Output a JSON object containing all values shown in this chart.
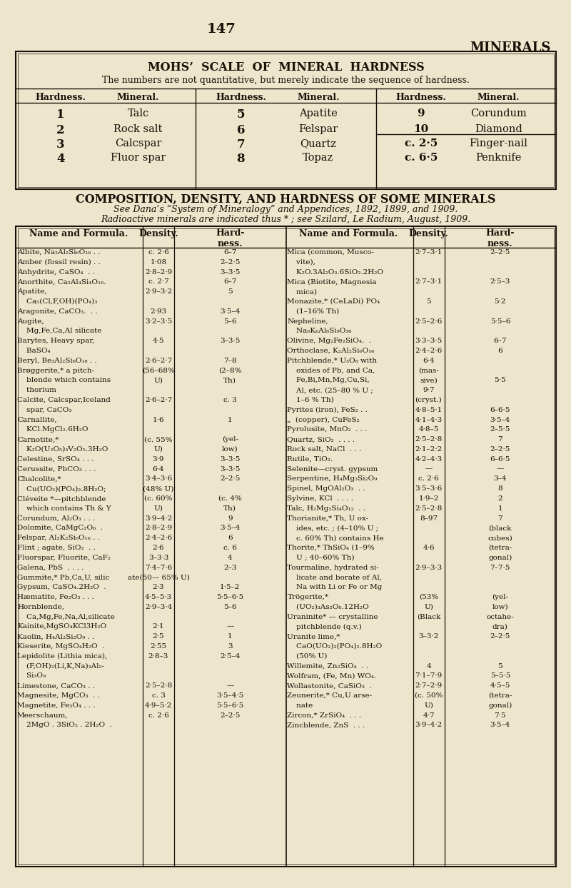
{
  "bg_color": "#ede5cc",
  "text_color": "#1a1008",
  "page_num": "147",
  "title_right": "MINERALS",
  "mohs_title": "MOHS’  SCALE  OF  MINERAL  HARDNESS",
  "mohs_subtitle": "The numbers are not quantitative, but merely indicate the sequence of hardness.",
  "comp_title": "COMPOSITION, DENSITY, AND HARDNESS OF SOME MINERALS",
  "comp_sub1": "See Dana’s “System of Mineralogy” and Appendices, 1892, 1899, and 1909.",
  "comp_sub2": "Radioactive minerals are indicated thus * ; see Szilard, Le Radium, August, 1909.",
  "mohs_col1": [
    [
      "1",
      "Talc"
    ],
    [
      "2",
      "Rock salt"
    ],
    [
      "3",
      "Calcspar"
    ],
    [
      "4",
      "Fluor spar"
    ]
  ],
  "mohs_col2": [
    [
      "5",
      "Apatite"
    ],
    [
      "6",
      "Felspar"
    ],
    [
      "7",
      "Quartz"
    ],
    [
      "8",
      "Topaz"
    ]
  ],
  "mohs_col3": [
    [
      "9",
      "Corundum"
    ],
    [
      "10",
      "Diamond"
    ],
    [
      "c. 2·5",
      "Finger-nail"
    ],
    [
      "c. 6·5",
      "Penknife"
    ]
  ],
  "left_rows": [
    [
      "Albite, Na₂Al₂Si₆O₁₆ . .",
      "c. 2·6",
      "6–7"
    ],
    [
      "Amber (fossil resin) . .",
      "1·08",
      "2–2·5"
    ],
    [
      "Anhydrite, CaSO₄  . .",
      "2·8–2·9",
      "3–3·5"
    ],
    [
      "Anorthite, Ca₂Al₄Si₄O₁₆.",
      "c. 2·7",
      "6–7"
    ],
    [
      "Apatite,",
      "2·9–3·2",
      "5"
    ],
    [
      "    Ca₅(Cl,F,OH)(PO₄)₃",
      "",
      ""
    ],
    [
      "Aragonite, CaCO₃.  . .",
      "2·93",
      "3·5–4"
    ],
    [
      "Augite,",
      "3·2–3·5",
      "5–6"
    ],
    [
      "    Mg,Fe,Ca,Al silicate",
      "",
      ""
    ],
    [
      "Barytes, Heavy spar,",
      "4·5",
      "3–3·5"
    ],
    [
      "    BaSO₄",
      "",
      ""
    ],
    [
      "Beryl, Be₃Al₂Si₆O₁₈ . .",
      "2·6–2·7",
      "7–8"
    ],
    [
      "Brøggerite,* a pitch-",
      "(56–68%",
      "(2–8%"
    ],
    [
      "    blende which contains",
      "U)",
      "Th)"
    ],
    [
      "    thorium",
      "",
      ""
    ],
    [
      "Calcite, Calcspar,Iceland",
      "2·6–2·7",
      "c. 3"
    ],
    [
      "    spar, CaCO₃",
      "",
      ""
    ],
    [
      "Carnallite,",
      "1·6",
      "1"
    ],
    [
      "    KCl.MgCl₂.6H₂O",
      "",
      ""
    ],
    [
      "Carnotite,*",
      "(c. 55%",
      "(yel-"
    ],
    [
      "    K₂O(U₂O₅)₃V₂O₅.3H₂O",
      "U)",
      "low)"
    ],
    [
      "Celestine, SrSO₄ . . .",
      "3·9",
      "3–3·5"
    ],
    [
      "Cerussite, PbCO₃ . . .",
      "6·4",
      "3–3·5"
    ],
    [
      "Chalcolite,*",
      "3·4–3·6",
      "2–2·5"
    ],
    [
      "    Cu(UO₂)(PO₄)₂.8H₂O;",
      "(48% U)",
      ""
    ],
    [
      "Cléveite *—pitchblende",
      "(c. 60%",
      "(c. 4%"
    ],
    [
      "    which contains Th & Y",
      "U)",
      "Th)"
    ],
    [
      "Corundum, Al₂O₃ . . .",
      "3·9–4·2",
      "9"
    ],
    [
      "Dolomite, CaMgC₂O₆  .",
      "2·8–2·9",
      "3·5–4"
    ],
    [
      "Felspar, Al₂K₂Si₆O₁₆ . .",
      "2·4–2·6",
      "6"
    ],
    [
      "Flint ; agate, SiO₂  . .",
      "2·6",
      "c. 6"
    ],
    [
      "Fluorspar, Fluorite, CaF₂",
      "3–3·3",
      "4"
    ],
    [
      "Galena, PbS  . . . .",
      "7·4–7·6",
      "2–3"
    ],
    [
      "Gummite,* Pb,Ca,U, silic",
      "ate(50— 65% U)",
      ""
    ],
    [
      "Gypsum, CaSO₄.2H₂O  .",
      "2·3",
      "1·5–2"
    ],
    [
      "Hæmatite, Fe₂O₃ . . .",
      "4·5–5·3",
      "5·5–6·5"
    ],
    [
      "Hornblende,",
      "2·9–3·4",
      "5–6"
    ],
    [
      "    Ca,Mg,Fe,Na,Al,silicate",
      "",
      ""
    ],
    [
      "Kainite,MgSO₄KCl3H₂O",
      "2·1",
      "—"
    ],
    [
      "Kaolin, H₄Al₂Si₂O₉ . .",
      "2·5",
      "1"
    ],
    [
      "Kieserite, MgSO₄H₂O  .",
      "2·55",
      "3"
    ],
    [
      "Lepidolite (Lithia mica),",
      "2·8–3",
      "2·5–4"
    ],
    [
      "    (F,OH)₂(Li,K,Na)₃Al₂-",
      "",
      ""
    ],
    [
      "    Si₃O₉",
      "",
      ""
    ],
    [
      "Limestone, CaCO₃ . .",
      "2·5–2·8",
      "—"
    ],
    [
      "Magnesite, MgCO₃  . .",
      "c. 3",
      "3·5–4·5"
    ],
    [
      "Magnetite, Fe₃O₄ . . .",
      "4·9–5·2",
      "5·5–6·5"
    ],
    [
      "Meerschaum,",
      "c. 2·6",
      "2–2·5"
    ],
    [
      "    2MgO . 3SiO₂ . 2H₂O  .",
      "",
      ""
    ]
  ],
  "right_rows": [
    [
      "Mica (common, Musco-",
      "2·7–3·1",
      "2–2·5"
    ],
    [
      "    vite),",
      "",
      ""
    ],
    [
      "    K₂O.3Al₂O₃.6SiO₂.2H₂O",
      "",
      ""
    ],
    [
      "Mica (Biotite, Magnesia",
      "2·7–3·1",
      "2·5–3"
    ],
    [
      "    mica)",
      "",
      ""
    ],
    [
      "Monazite,* (CeLaDi) PO₄",
      "5",
      "5·2"
    ],
    [
      "    (1–16% Th)",
      "",
      ""
    ],
    [
      "Nepheline,",
      "2·5–2·6",
      "5·5–6"
    ],
    [
      "    Na₆K₆Al₈Si₉O₃₆",
      "",
      ""
    ],
    [
      "Olivine, Mg₂Fe₂SiO₄.  .",
      "3·3–3·5",
      "6–7"
    ],
    [
      "Orthoclase, K₂Al₂Si₆O₁₆",
      "2·4–2·6",
      "6"
    ],
    [
      "Pitchblende,* U₃O₈ with",
      "6·4",
      ""
    ],
    [
      "    oxides of Pb, and Ca,",
      "(mas-",
      ""
    ],
    [
      "    Fe,Bi,Mn,Mg,Cu,Si,",
      "sive)",
      "5·5"
    ],
    [
      "    Al, etc. (25–80 % U ;",
      "9·7",
      ""
    ],
    [
      "    1–6 % Th)",
      "(cryst.)",
      ""
    ],
    [
      "Pyrites (iron), FeS₂ . .",
      "4·8–5·1",
      "6–6·5"
    ],
    [
      "„  (copper), CuFeS₂",
      "4·1–4·3",
      "3·5–4"
    ],
    [
      "Pyrolusite, MnO₂  . . .",
      "4·8–5",
      "2–5·5"
    ],
    [
      "Quartz, SiO₂  . . . .",
      "2·5–2·8",
      "7"
    ],
    [
      "Rock salt, NaCl  . . .",
      "2·1–2·2",
      "2–2·5"
    ],
    [
      "Rutile, TiO₂.",
      "4·2–4·3",
      "6–6·5"
    ],
    [
      "Selenite—cryst. gypsum",
      "—",
      "—"
    ],
    [
      "Serpentine, H₄Mg₃Si₂O₉",
      "c. 2·6",
      "3–4"
    ],
    [
      "Spinel, MgOAl₂O₃  . .",
      "3·5–3·6",
      "8"
    ],
    [
      "Sylvine, KCl  . . . .",
      "1·9–2",
      "2"
    ],
    [
      "Talc, H₂Mg₃Si₄O₁₂  . .",
      "2·5–2·8",
      "1"
    ],
    [
      "Thorianite,* Th, U ox-",
      "8–97",
      "7"
    ],
    [
      "    ides, etc. ; (4–10% U ;",
      "",
      "(black"
    ],
    [
      "    c. 60% Th) contains He",
      "",
      "cubes)"
    ],
    [
      "Thorite,* ThSiO₄ (1–9%",
      "4·6",
      "(tetra-"
    ],
    [
      "    U ; 40–60% Th)",
      "",
      "gonal)"
    ],
    [
      "Tourmaline, hydrated si-",
      "2·9–3·3",
      "7–7·5"
    ],
    [
      "    licate and borate of Al,",
      "",
      ""
    ],
    [
      "    Na with Li or Fe or Mg",
      "",
      ""
    ],
    [
      "Trögerite,*",
      "(53%",
      "(yel-"
    ],
    [
      "    (UO₂)₃As₂O₈.12H₂O",
      "U)",
      "low)"
    ],
    [
      "Uraninite* — crystalline",
      "(Black",
      "octahe-"
    ],
    [
      "    pitchblende (q.v.)",
      "",
      "dra)"
    ],
    [
      "Uranite lime,*",
      "3–3·2",
      "2–2·5"
    ],
    [
      "    CaO(UO₂)₂(PO₄)₂.8H₂O",
      "",
      ""
    ],
    [
      "    (50% U)",
      "",
      ""
    ],
    [
      "Willemite, Zn₂SiO₄  . .",
      "4",
      "5"
    ],
    [
      "Wolfram, (Fe, Mn) WO₄.",
      "7·1–7·9",
      "5–5·5"
    ],
    [
      "Wollastonite, CaSiO₃  .",
      "2·7–2·9",
      "4·5–5"
    ],
    [
      "Zeunerite,* Cu,U arse-",
      "(c. 50%",
      "(tetra-"
    ],
    [
      "    nate",
      "U)",
      "gonal)"
    ],
    [
      "Zircon,* ZrSiO₄  . . .",
      "4·7",
      "7·5"
    ],
    [
      "Zincblende, ZnS  . . .",
      "3·9–4·2",
      "3·5–4"
    ]
  ]
}
